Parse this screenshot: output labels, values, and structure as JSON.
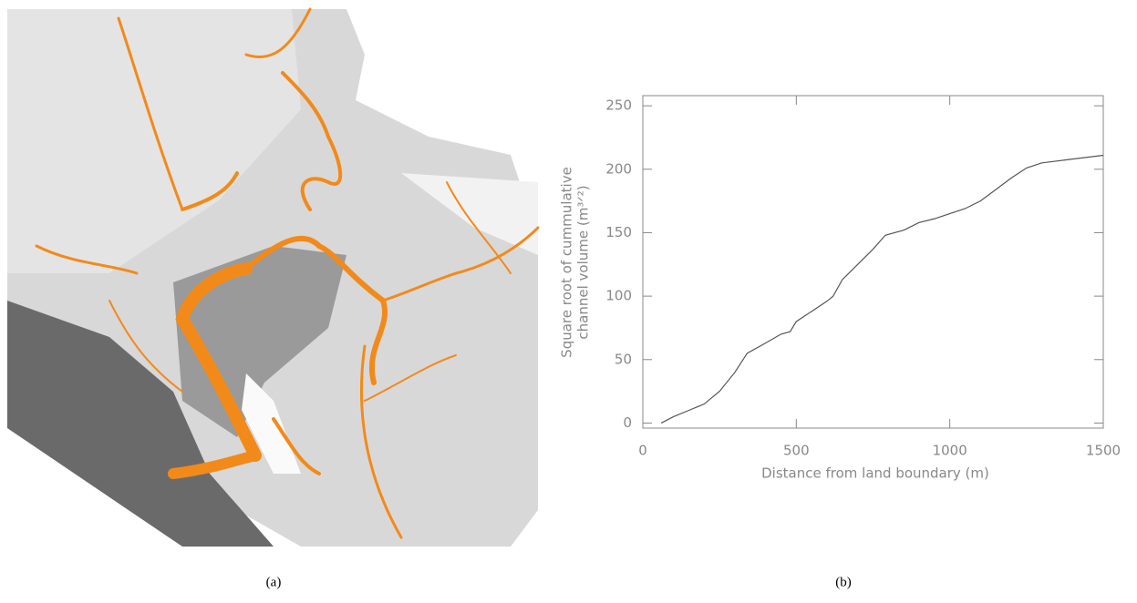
{
  "chart_data": {
    "type": "line",
    "xlabel": "Distance from land boundary (m)",
    "ylabel": [
      "Square root of cummulative",
      "channel volume (m³ᐟ²)"
    ],
    "xlim": [
      0,
      1500
    ],
    "xticks": [
      0,
      500,
      1000,
      1500
    ],
    "ylim": [
      -4,
      258
    ],
    "yticks": [
      0,
      50,
      100,
      150,
      200,
      250
    ],
    "series": [
      {
        "color": "#555555",
        "x": [
          60,
          100,
          150,
          200,
          250,
          300,
          340,
          400,
          450,
          480,
          500,
          550,
          600,
          620,
          650,
          700,
          750,
          790,
          850,
          900,
          950,
          1000,
          1050,
          1100,
          1150,
          1200,
          1250,
          1300,
          1400,
          1500
        ],
        "values": [
          0,
          5,
          10,
          15,
          25,
          40,
          55,
          63,
          70,
          72,
          80,
          88,
          96,
          100,
          113,
          125,
          137,
          148,
          152,
          158,
          161,
          165,
          169,
          175,
          184,
          193,
          201,
          205,
          208,
          211
        ]
      }
    ]
  },
  "captions": [
    "(a)",
    "(b)"
  ]
}
